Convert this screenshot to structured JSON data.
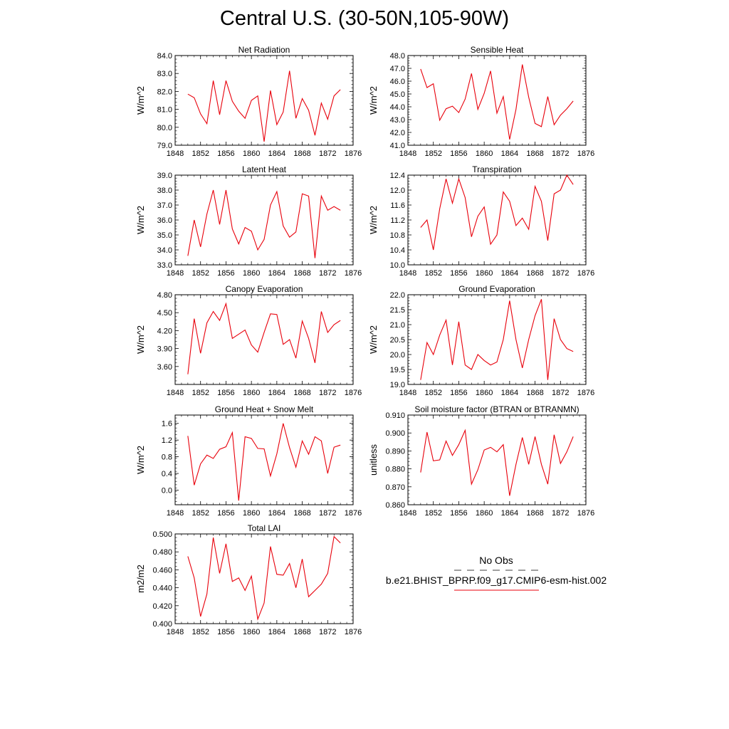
{
  "page_title": "Central U.S. (30-50N,105-90W)",
  "legend": {
    "obs_label": "No Obs",
    "model_label": "b.e21.BHIST_BPRP.f09_g17.CMIP6-esm-hist.002",
    "obs_color": "#000000",
    "model_color": "#e8000b"
  },
  "chart_data": [
    {
      "type": "line",
      "title": "Net Radiation",
      "ylabel": "W/m^2",
      "xlim": [
        1848,
        1876
      ],
      "ylim": [
        79.0,
        84.0
      ],
      "xticks": [
        1848,
        1852,
        1856,
        1860,
        1864,
        1868,
        1872,
        1876
      ],
      "yticks": [
        "79.0",
        "80.0",
        "81.0",
        "82.0",
        "83.0",
        "84.0"
      ],
      "series": [
        {
          "color": "#e8000b",
          "x": [
            1850,
            1851,
            1852,
            1853,
            1854,
            1855,
            1856,
            1857,
            1858,
            1859,
            1860,
            1861,
            1862,
            1863,
            1864,
            1865,
            1866,
            1867,
            1868,
            1869,
            1870,
            1871,
            1872,
            1873,
            1874
          ],
          "y": [
            81.85,
            81.65,
            80.75,
            80.2,
            82.6,
            80.7,
            82.6,
            81.45,
            80.9,
            80.5,
            81.5,
            81.75,
            79.2,
            82.05,
            80.15,
            80.85,
            83.15,
            80.5,
            81.6,
            80.95,
            79.55,
            81.35,
            80.45,
            81.75,
            82.1
          ]
        }
      ]
    },
    {
      "type": "line",
      "title": "Sensible Heat",
      "ylabel": "W/m^2",
      "xlim": [
        1848,
        1876
      ],
      "ylim": [
        41.0,
        48.0
      ],
      "xticks": [
        1848,
        1852,
        1856,
        1860,
        1864,
        1868,
        1872,
        1876
      ],
      "yticks": [
        "41.0",
        "42.0",
        "43.0",
        "44.0",
        "45.0",
        "46.0",
        "47.0",
        "48.0"
      ],
      "series": [
        {
          "color": "#e8000b",
          "x": [
            1850,
            1851,
            1852,
            1853,
            1854,
            1855,
            1856,
            1857,
            1858,
            1859,
            1860,
            1861,
            1862,
            1863,
            1864,
            1865,
            1866,
            1867,
            1868,
            1869,
            1870,
            1871,
            1872,
            1873,
            1874
          ],
          "y": [
            46.95,
            45.5,
            45.8,
            42.95,
            43.85,
            44.05,
            43.55,
            44.6,
            46.6,
            43.8,
            45.05,
            46.8,
            43.5,
            44.8,
            41.45,
            43.8,
            47.3,
            44.75,
            42.7,
            42.45,
            44.8,
            42.6,
            43.35,
            43.85,
            44.45
          ]
        }
      ]
    },
    {
      "type": "line",
      "title": "Latent Heat",
      "ylabel": "W/m^2",
      "xlim": [
        1848,
        1876
      ],
      "ylim": [
        33.0,
        39.0
      ],
      "xticks": [
        1848,
        1852,
        1856,
        1860,
        1864,
        1868,
        1872,
        1876
      ],
      "yticks": [
        "33.0",
        "34.0",
        "35.0",
        "36.0",
        "37.0",
        "38.0",
        "39.0"
      ],
      "series": [
        {
          "color": "#e8000b",
          "x": [
            1850,
            1851,
            1852,
            1853,
            1854,
            1855,
            1856,
            1857,
            1858,
            1859,
            1860,
            1861,
            1862,
            1863,
            1864,
            1865,
            1866,
            1867,
            1868,
            1869,
            1870,
            1871,
            1872,
            1873,
            1874
          ],
          "y": [
            33.6,
            36.0,
            34.2,
            36.4,
            38.0,
            35.7,
            38.0,
            35.4,
            34.4,
            35.5,
            35.25,
            34.0,
            34.7,
            37.0,
            37.9,
            35.6,
            34.85,
            35.2,
            37.75,
            37.6,
            33.45,
            37.6,
            36.65,
            36.9,
            36.65
          ]
        }
      ]
    },
    {
      "type": "line",
      "title": "Transpiration",
      "ylabel": "W/m^2",
      "xlim": [
        1848,
        1876
      ],
      "ylim": [
        10.0,
        12.4
      ],
      "xticks": [
        1848,
        1852,
        1856,
        1860,
        1864,
        1868,
        1872,
        1876
      ],
      "yticks": [
        "10.0",
        "10.4",
        "10.8",
        "11.2",
        "11.6",
        "12.0",
        "12.4"
      ],
      "series": [
        {
          "color": "#e8000b",
          "x": [
            1850,
            1851,
            1852,
            1853,
            1854,
            1855,
            1856,
            1857,
            1858,
            1859,
            1860,
            1861,
            1862,
            1863,
            1864,
            1865,
            1866,
            1867,
            1868,
            1869,
            1870,
            1871,
            1872,
            1873,
            1874
          ],
          "y": [
            11.0,
            11.2,
            10.4,
            11.5,
            12.3,
            11.65,
            12.3,
            11.8,
            10.75,
            11.3,
            11.55,
            10.55,
            10.8,
            11.95,
            11.7,
            11.05,
            11.25,
            10.95,
            12.1,
            11.7,
            10.65,
            11.9,
            12.0,
            12.4,
            12.15
          ]
        }
      ]
    },
    {
      "type": "line",
      "title": "Canopy Evaporation",
      "ylabel": "W/m^2",
      "xlim": [
        1848,
        1876
      ],
      "ylim": [
        3.3,
        4.8
      ],
      "xticks": [
        1848,
        1852,
        1856,
        1860,
        1864,
        1868,
        1872,
        1876
      ],
      "yticks": [
        "3.60",
        "3.90",
        "4.20",
        "4.50",
        "4.80"
      ],
      "series": [
        {
          "color": "#e8000b",
          "x": [
            1850,
            1851,
            1852,
            1853,
            1854,
            1855,
            1856,
            1857,
            1858,
            1859,
            1860,
            1861,
            1862,
            1863,
            1864,
            1865,
            1866,
            1867,
            1868,
            1869,
            1870,
            1871,
            1872,
            1873,
            1874
          ],
          "y": [
            3.47,
            4.4,
            3.82,
            4.33,
            4.52,
            4.37,
            4.65,
            4.07,
            4.14,
            4.21,
            3.96,
            3.84,
            4.17,
            4.48,
            4.47,
            3.97,
            4.05,
            3.74,
            4.36,
            4.07,
            3.66,
            4.52,
            4.17,
            4.3,
            4.37
          ]
        }
      ]
    },
    {
      "type": "line",
      "title": "Ground Evaporation",
      "ylabel": "W/m^2",
      "xlim": [
        1848,
        1876
      ],
      "ylim": [
        19.0,
        22.0
      ],
      "xticks": [
        1848,
        1852,
        1856,
        1860,
        1864,
        1868,
        1872,
        1876
      ],
      "yticks": [
        "19.0",
        "19.5",
        "20.0",
        "20.5",
        "21.0",
        "21.5",
        "22.0"
      ],
      "series": [
        {
          "color": "#e8000b",
          "x": [
            1850,
            1851,
            1852,
            1853,
            1854,
            1855,
            1856,
            1857,
            1858,
            1859,
            1860,
            1861,
            1862,
            1863,
            1864,
            1865,
            1866,
            1867,
            1868,
            1869,
            1870,
            1871,
            1872,
            1873,
            1874
          ],
          "y": [
            19.15,
            20.4,
            20.0,
            20.65,
            21.15,
            19.65,
            21.1,
            19.65,
            19.5,
            20.0,
            19.8,
            19.65,
            19.75,
            20.5,
            21.8,
            20.5,
            19.55,
            20.5,
            21.3,
            21.85,
            19.15,
            21.2,
            20.5,
            20.2,
            20.1
          ]
        }
      ]
    },
    {
      "type": "line",
      "title": "Ground Heat + Snow Melt",
      "ylabel": "W/m^2",
      "xlim": [
        1848,
        1876
      ],
      "ylim": [
        -0.35,
        1.8
      ],
      "xticks": [
        1848,
        1852,
        1856,
        1860,
        1864,
        1868,
        1872,
        1876
      ],
      "yticks": [
        "0.0",
        "0.4",
        "0.8",
        "1.2",
        "1.6"
      ],
      "series": [
        {
          "color": "#e8000b",
          "x": [
            1850,
            1851,
            1852,
            1853,
            1854,
            1855,
            1856,
            1857,
            1858,
            1859,
            1860,
            1861,
            1862,
            1863,
            1864,
            1865,
            1866,
            1867,
            1868,
            1869,
            1870,
            1871,
            1872,
            1873,
            1874
          ],
          "y": [
            1.3,
            0.12,
            0.63,
            0.84,
            0.76,
            0.98,
            1.04,
            1.38,
            -0.25,
            1.28,
            1.24,
            1.0,
            0.99,
            0.34,
            0.87,
            1.6,
            1.02,
            0.55,
            1.18,
            0.86,
            1.28,
            1.18,
            0.4,
            1.03,
            1.08
          ]
        }
      ]
    },
    {
      "type": "line",
      "title": "Soil moisture factor (BTRAN or BTRANMN)",
      "ylabel": "unitless",
      "xlim": [
        1848,
        1876
      ],
      "ylim": [
        0.86,
        0.91
      ],
      "xticks": [
        1848,
        1852,
        1856,
        1860,
        1864,
        1868,
        1872,
        1876
      ],
      "yticks": [
        "0.860",
        "0.870",
        "0.880",
        "0.890",
        "0.900",
        "0.910"
      ],
      "series": [
        {
          "color": "#e8000b",
          "x": [
            1850,
            1851,
            1852,
            1853,
            1854,
            1855,
            1856,
            1857,
            1858,
            1859,
            1860,
            1861,
            1862,
            1863,
            1864,
            1865,
            1866,
            1867,
            1868,
            1869,
            1870,
            1871,
            1872,
            1873,
            1874
          ],
          "y": [
            0.878,
            0.9005,
            0.8845,
            0.885,
            0.8955,
            0.8875,
            0.8935,
            0.9015,
            0.8715,
            0.8795,
            0.8905,
            0.892,
            0.8895,
            0.8935,
            0.865,
            0.8825,
            0.8975,
            0.8825,
            0.898,
            0.8825,
            0.8715,
            0.899,
            0.883,
            0.8895,
            0.898
          ]
        }
      ]
    },
    {
      "type": "line",
      "title": "Total LAI",
      "ylabel": "m2/m2",
      "xlim": [
        1848,
        1876
      ],
      "ylim": [
        0.4,
        0.5
      ],
      "xticks": [
        1848,
        1852,
        1856,
        1860,
        1864,
        1868,
        1872,
        1876
      ],
      "yticks": [
        "0.400",
        "0.420",
        "0.440",
        "0.460",
        "0.480",
        "0.500"
      ],
      "series": [
        {
          "color": "#e8000b",
          "x": [
            1850,
            1851,
            1852,
            1853,
            1854,
            1855,
            1856,
            1857,
            1858,
            1859,
            1860,
            1861,
            1862,
            1863,
            1864,
            1865,
            1866,
            1867,
            1868,
            1869,
            1870,
            1871,
            1872,
            1873,
            1874
          ],
          "y": [
            0.475,
            0.451,
            0.408,
            0.433,
            0.496,
            0.456,
            0.489,
            0.447,
            0.451,
            0.437,
            0.453,
            0.405,
            0.423,
            0.486,
            0.455,
            0.454,
            0.467,
            0.44,
            0.472,
            0.43,
            0.437,
            0.444,
            0.456,
            0.497,
            0.49
          ]
        }
      ]
    }
  ]
}
